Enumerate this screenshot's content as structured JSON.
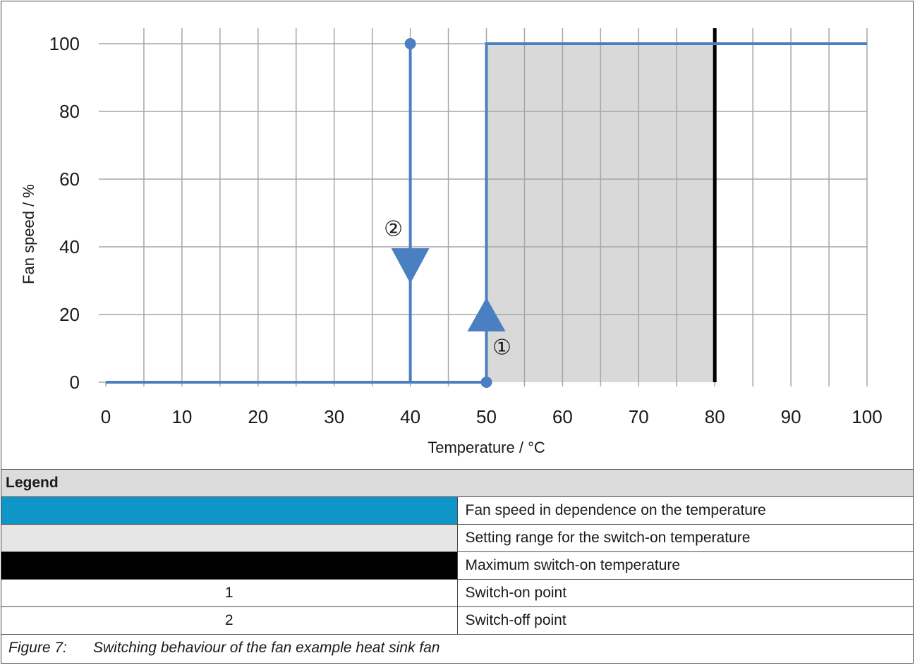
{
  "chart_data": {
    "type": "line",
    "xlabel": "Temperature / °C",
    "ylabel": "Fan speed / %",
    "xlim": [
      0,
      100
    ],
    "ylim": [
      0,
      100
    ],
    "x_ticks": [
      0,
      10,
      20,
      30,
      40,
      50,
      60,
      70,
      80,
      90,
      100
    ],
    "y_ticks": [
      0,
      20,
      40,
      60,
      80,
      100
    ],
    "x_tick_labels": [
      "0",
      "10",
      "20",
      "30",
      "40",
      "50",
      "60",
      "70",
      "80",
      "90",
      "100"
    ],
    "y_tick_labels": [
      "0",
      "20",
      "40",
      "60",
      "80",
      "100"
    ],
    "grid": true,
    "series": [
      {
        "values_heating": [
          [
            0,
            0
          ],
          [
            50,
            0
          ],
          [
            50,
            100
          ],
          [
            100,
            100
          ]
        ],
        "values_cooling": [
          [
            40,
            100
          ],
          [
            40,
            0
          ]
        ]
      }
    ],
    "shaded_range_x": [
      50,
      80
    ],
    "vertical_line_x": 80,
    "markers": [
      {
        "x": 50,
        "y": 0,
        "label": "①"
      },
      {
        "x": 40,
        "y": 100,
        "label": "②"
      }
    ],
    "colors": {
      "series": "#4a7fc1",
      "shade": "#d9d9d9",
      "max_line": "#000000",
      "grid": "#a6a6a6"
    }
  },
  "legend": {
    "title": "Legend",
    "items": [
      {
        "key": "",
        "key_color": "#0f96c8",
        "text": "Fan speed in dependence on the temperature"
      },
      {
        "key": "",
        "key_color": "#e6e6e6",
        "text": "Setting range for the switch-on temperature"
      },
      {
        "key": "",
        "key_color": "#000000",
        "text": "Maximum switch-on temperature"
      },
      {
        "key": "1",
        "key_color": "",
        "text": "Switch-on point"
      },
      {
        "key": "2",
        "key_color": "",
        "text": "Switch-off point"
      }
    ]
  },
  "caption": {
    "number": "Figure 7:",
    "text": "Switching behaviour of the fan example heat sink fan"
  }
}
